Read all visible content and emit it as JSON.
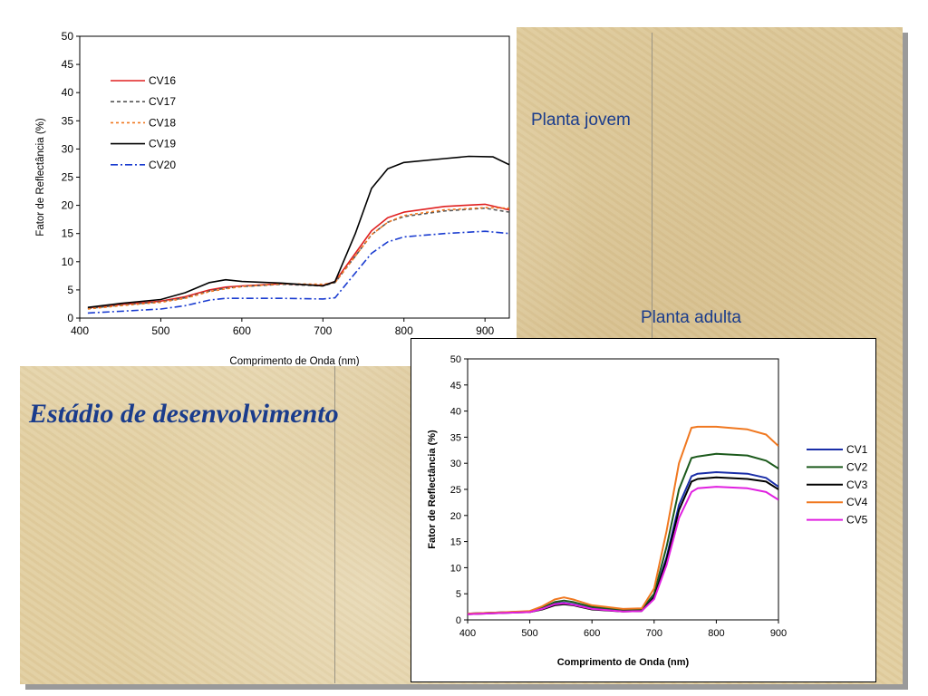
{
  "labels": {
    "young": "Planta jovem",
    "adult": "Planta adulta",
    "stage": "Estádio de desenvolvimento"
  },
  "chart_data": [
    {
      "type": "line",
      "xlabel": "Comprimento de Onda (nm)",
      "ylabel": "Fator de Reflectância (%)",
      "xlim": [
        400,
        930
      ],
      "ylim": [
        0,
        50
      ],
      "xticks": [
        400,
        500,
        600,
        700,
        800,
        900
      ],
      "yticks": [
        0,
        5,
        10,
        15,
        20,
        25,
        30,
        35,
        40,
        45,
        50
      ],
      "grid": false,
      "legend": "top-left",
      "series": [
        {
          "name": "CV16",
          "color": "#e02020",
          "dash": "solid",
          "x": [
            410,
            450,
            500,
            530,
            560,
            580,
            600,
            650,
            700,
            715,
            740,
            760,
            780,
            800,
            850,
            900,
            930
          ],
          "y": [
            1.8,
            2.4,
            3.0,
            3.8,
            5.0,
            5.5,
            5.7,
            6.1,
            5.8,
            6.5,
            11.5,
            15.5,
            17.8,
            18.8,
            19.8,
            20.2,
            19.2
          ]
        },
        {
          "name": "CV17",
          "color": "#555555",
          "dash": "4,3",
          "x": [
            410,
            450,
            500,
            530,
            560,
            580,
            600,
            650,
            700,
            715,
            740,
            760,
            780,
            800,
            850,
            900,
            930
          ],
          "y": [
            1.7,
            2.3,
            2.9,
            3.6,
            4.8,
            5.3,
            5.6,
            6.0,
            5.7,
            6.3,
            11.0,
            14.8,
            17.0,
            18.0,
            19.0,
            19.5,
            18.8
          ]
        },
        {
          "name": "CV18",
          "color": "#f07820",
          "dash": "3,3",
          "x": [
            410,
            450,
            500,
            530,
            560,
            580,
            600,
            650,
            700,
            715,
            740,
            760,
            780,
            800,
            850,
            900,
            930
          ],
          "y": [
            1.6,
            2.2,
            2.8,
            3.5,
            4.7,
            5.2,
            5.6,
            6.1,
            6.0,
            6.3,
            11.0,
            14.8,
            17.0,
            18.2,
            19.2,
            19.6,
            19.5
          ]
        },
        {
          "name": "CV19",
          "color": "#000000",
          "dash": "solid",
          "x": [
            410,
            450,
            500,
            530,
            560,
            580,
            600,
            650,
            700,
            715,
            740,
            760,
            780,
            800,
            850,
            880,
            910,
            930
          ],
          "y": [
            1.9,
            2.6,
            3.3,
            4.5,
            6.3,
            6.8,
            6.5,
            6.2,
            5.7,
            6.5,
            15.0,
            23.0,
            26.5,
            27.6,
            28.3,
            28.7,
            28.6,
            27.2
          ]
        },
        {
          "name": "CV20",
          "color": "#1a3cd0",
          "dash": "8,3,2,3",
          "x": [
            410,
            450,
            500,
            530,
            560,
            580,
            600,
            650,
            700,
            715,
            740,
            760,
            780,
            800,
            850,
            900,
            930
          ],
          "y": [
            0.9,
            1.2,
            1.6,
            2.2,
            3.2,
            3.5,
            3.5,
            3.5,
            3.4,
            3.6,
            8.0,
            11.5,
            13.5,
            14.4,
            15.0,
            15.4,
            15.0
          ]
        }
      ]
    },
    {
      "type": "line",
      "xlabel": "Comprimento de Onda (nm)",
      "ylabel": "Fator de Reflectância (%)",
      "xlim": [
        400,
        900
      ],
      "ylim": [
        0,
        50
      ],
      "xticks": [
        400,
        500,
        600,
        700,
        800,
        900
      ],
      "yticks": [
        0,
        5,
        10,
        15,
        20,
        25,
        30,
        35,
        40,
        45,
        50
      ],
      "grid": false,
      "legend": "right",
      "series": [
        {
          "name": "CV1",
          "color": "#1a2ea8",
          "dash": "solid",
          "x": [
            400,
            450,
            500,
            520,
            540,
            555,
            570,
            600,
            650,
            680,
            700,
            720,
            740,
            760,
            770,
            800,
            850,
            880,
            900
          ],
          "y": [
            1.2,
            1.4,
            1.6,
            2.2,
            3.1,
            3.3,
            3.0,
            2.2,
            1.7,
            1.8,
            4.5,
            12.0,
            22.0,
            27.5,
            28.0,
            28.3,
            28.0,
            27.2,
            25.5
          ]
        },
        {
          "name": "CV2",
          "color": "#1c5a1c",
          "dash": "solid",
          "x": [
            400,
            450,
            500,
            520,
            540,
            555,
            570,
            600,
            650,
            680,
            700,
            720,
            740,
            760,
            770,
            800,
            850,
            880,
            900
          ],
          "y": [
            1.2,
            1.4,
            1.6,
            2.3,
            3.4,
            3.7,
            3.4,
            2.5,
            1.9,
            2.0,
            5.0,
            14.0,
            25.0,
            31.0,
            31.3,
            31.8,
            31.5,
            30.5,
            29.0
          ]
        },
        {
          "name": "CV3",
          "color": "#000000",
          "dash": "solid",
          "x": [
            400,
            450,
            500,
            520,
            540,
            555,
            570,
            600,
            650,
            680,
            700,
            720,
            740,
            760,
            770,
            800,
            850,
            880,
            900
          ],
          "y": [
            1.1,
            1.3,
            1.5,
            2.0,
            2.8,
            3.0,
            2.8,
            2.0,
            1.6,
            1.7,
            4.3,
            11.5,
            21.0,
            26.5,
            27.0,
            27.3,
            27.0,
            26.5,
            25.0
          ]
        },
        {
          "name": "CV4",
          "color": "#f07820",
          "dash": "solid",
          "x": [
            400,
            450,
            500,
            520,
            540,
            555,
            570,
            600,
            650,
            680,
            700,
            720,
            740,
            760,
            770,
            800,
            850,
            880,
            900
          ],
          "y": [
            1.2,
            1.4,
            1.7,
            2.6,
            3.9,
            4.3,
            3.9,
            2.8,
            2.1,
            2.2,
            6.0,
            17.0,
            30.0,
            36.8,
            37.0,
            37.0,
            36.5,
            35.5,
            33.3
          ]
        },
        {
          "name": "CV5",
          "color": "#e020e0",
          "dash": "solid",
          "x": [
            400,
            450,
            500,
            520,
            540,
            555,
            570,
            600,
            650,
            680,
            700,
            720,
            740,
            760,
            770,
            800,
            850,
            880,
            900
          ],
          "y": [
            1.1,
            1.3,
            1.5,
            2.1,
            3.0,
            3.2,
            2.9,
            2.1,
            1.6,
            1.7,
            4.0,
            10.5,
            19.5,
            24.5,
            25.2,
            25.5,
            25.2,
            24.5,
            23.0
          ]
        }
      ]
    }
  ]
}
